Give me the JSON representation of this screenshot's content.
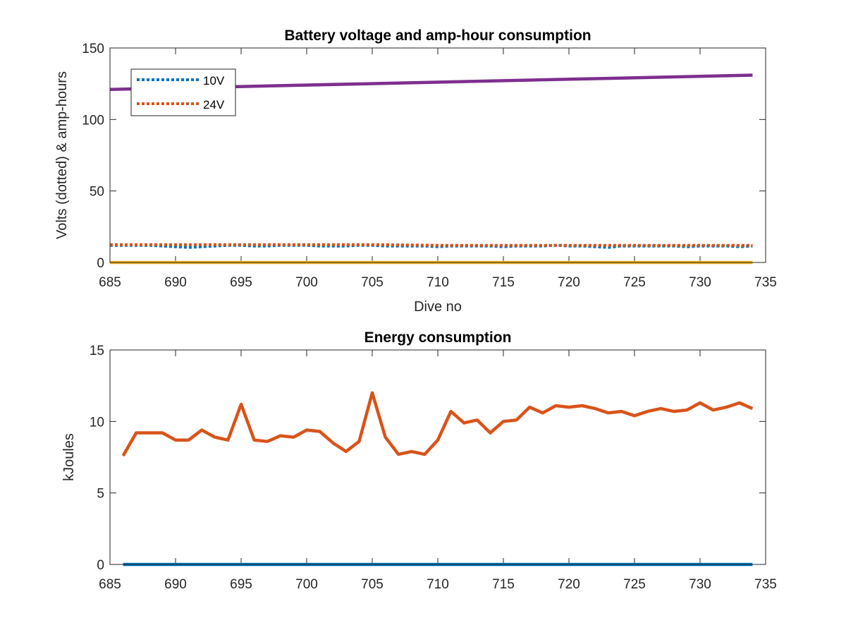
{
  "chart_data": [
    {
      "type": "line",
      "title": "Battery voltage and amp-hour consumption",
      "xlabel": "Dive no",
      "ylabel": "Volts (dotted) & amp-hours",
      "xlim": [
        685,
        735
      ],
      "ylim": [
        0,
        150
      ],
      "xticks": [
        685,
        690,
        695,
        700,
        705,
        710,
        715,
        720,
        725,
        730,
        735
      ],
      "yticks": [
        0,
        50,
        100,
        150
      ],
      "legend_position": "top-left",
      "series": [
        {
          "name": "10V",
          "style": "dotted",
          "color": "#0072BD",
          "x": [
            685,
            686,
            687,
            688,
            689,
            690,
            691,
            692,
            693,
            694,
            695,
            696,
            697,
            698,
            699,
            700,
            701,
            702,
            703,
            704,
            705,
            706,
            707,
            708,
            709,
            710,
            711,
            712,
            713,
            714,
            715,
            716,
            717,
            718,
            719,
            720,
            721,
            722,
            723,
            724,
            725,
            726,
            727,
            728,
            729,
            730,
            731,
            732,
            733,
            734
          ],
          "y": [
            12,
            12,
            12,
            12,
            11.5,
            11,
            10.5,
            11,
            11.5,
            12,
            12,
            11.5,
            11.5,
            12,
            12,
            12,
            11.5,
            11.5,
            11.5,
            12,
            12,
            11.5,
            11.5,
            11.5,
            11.5,
            11,
            11.5,
            11.5,
            11.5,
            11.5,
            11,
            11.5,
            11.5,
            11.5,
            12,
            11.5,
            11.5,
            11,
            10.5,
            11.5,
            11.5,
            11.5,
            11.5,
            11.5,
            11,
            11.5,
            11.5,
            11.5,
            11,
            11.5
          ]
        },
        {
          "name": "24V",
          "style": "dotted",
          "color": "#D95319",
          "x": [
            685,
            690,
            695,
            700,
            705,
            710,
            715,
            720,
            725,
            730,
            734
          ],
          "y": [
            12.5,
            12.5,
            12.5,
            12.5,
            12.5,
            12,
            12,
            12,
            12,
            12,
            12
          ]
        },
        {
          "name": "",
          "style": "solid",
          "color": "#EDB120",
          "x": [
            685,
            734
          ],
          "y": [
            0,
            0
          ]
        },
        {
          "name": "",
          "style": "solid",
          "color": "#7E2F8E",
          "x": [
            685,
            734
          ],
          "y": [
            121,
            131
          ]
        }
      ]
    },
    {
      "type": "line",
      "title": "Energy consumption",
      "xlabel": "",
      "ylabel": "kJoules",
      "xlim": [
        685,
        735
      ],
      "ylim": [
        0,
        15
      ],
      "xticks": [
        685,
        690,
        695,
        700,
        705,
        710,
        715,
        720,
        725,
        730,
        735
      ],
      "yticks": [
        0,
        5,
        10,
        15
      ],
      "series": [
        {
          "name": "",
          "style": "solid",
          "color": "#D95319",
          "x": [
            686,
            687,
            688,
            689,
            690,
            691,
            692,
            693,
            694,
            695,
            696,
            697,
            698,
            699,
            700,
            701,
            702,
            703,
            704,
            705,
            706,
            707,
            708,
            709,
            710,
            711,
            712,
            713,
            714,
            715,
            716,
            717,
            718,
            719,
            720,
            721,
            722,
            723,
            724,
            725,
            726,
            727,
            728,
            729,
            730,
            731,
            732,
            733,
            734
          ],
          "y": [
            7.6,
            9.2,
            9.2,
            9.2,
            8.7,
            8.7,
            9.4,
            8.9,
            8.7,
            11.2,
            8.7,
            8.6,
            9.0,
            8.9,
            9.4,
            9.3,
            8.5,
            7.9,
            8.6,
            12.0,
            8.9,
            7.7,
            7.9,
            7.7,
            8.7,
            10.7,
            9.9,
            10.1,
            9.2,
            10.0,
            10.1,
            11.0,
            10.6,
            11.1,
            11.0,
            11.1,
            10.9,
            10.6,
            10.7,
            10.4,
            10.7,
            10.9,
            10.7,
            10.8,
            11.3,
            10.8,
            11.0,
            11.3,
            10.9
          ]
        },
        {
          "name": "",
          "style": "solid",
          "color": "#0072BD",
          "x": [
            686,
            734
          ],
          "y": [
            0,
            0
          ]
        }
      ]
    }
  ]
}
